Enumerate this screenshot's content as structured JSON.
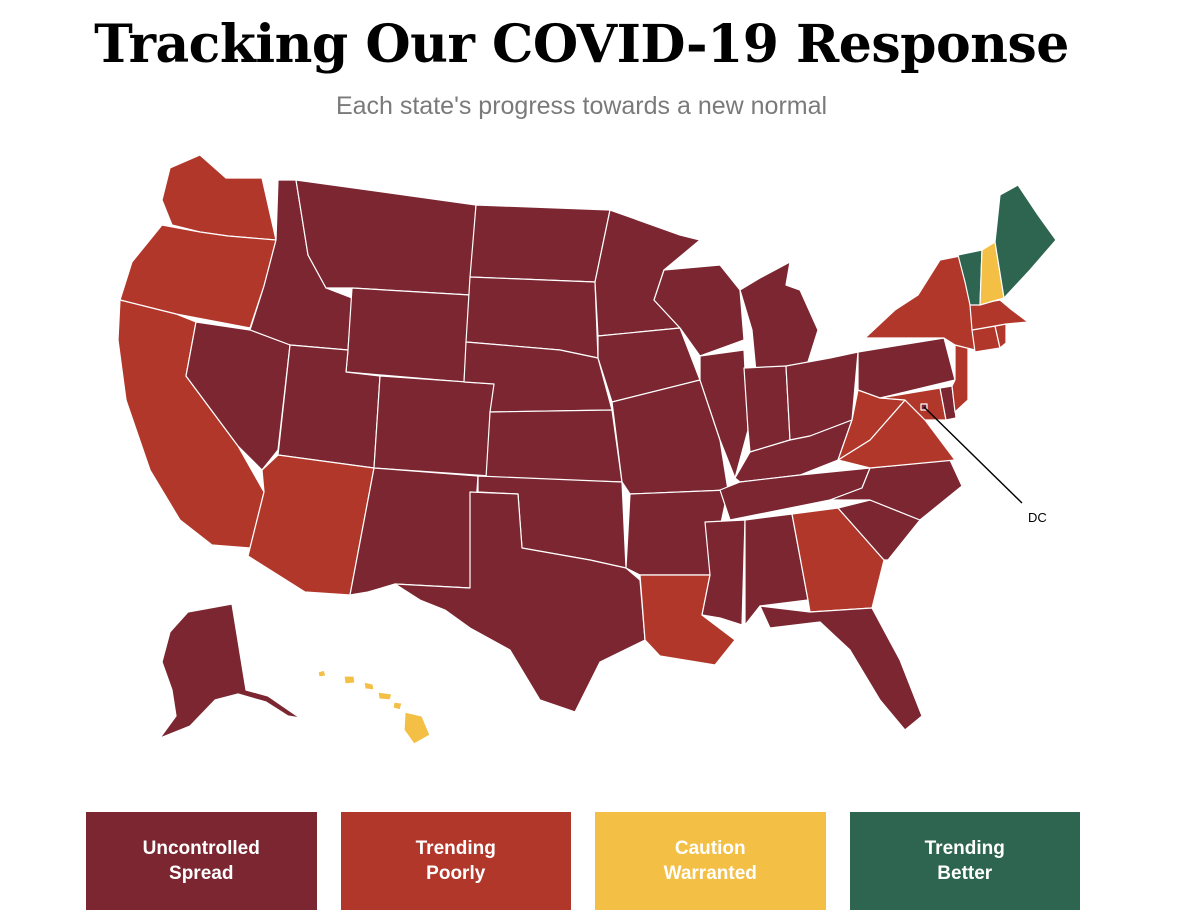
{
  "title": "Tracking Our COVID-19 Response",
  "subtitle": "Each state's progress towards a new normal",
  "colors": {
    "uncontrolled": "#7b2631",
    "poorly": "#b2372b",
    "caution": "#f3bf45",
    "better": "#2e6551"
  },
  "legend": [
    {
      "label": "Uncontrolled\nSpread",
      "color": "#7b2631"
    },
    {
      "label": "Trending\nPoorly",
      "color": "#b2372b"
    },
    {
      "label": "Caution\nWarranted",
      "color": "#f3bf45"
    },
    {
      "label": "Trending\nBetter",
      "color": "#2e6551"
    }
  ],
  "map": {
    "dc_label": "DC",
    "states": {
      "WA": "poorly",
      "OR": "poorly",
      "CA": "poorly",
      "AZ": "poorly",
      "NY": "poorly",
      "MA": "poorly",
      "CT": "poorly",
      "RI": "poorly",
      "NJ": "poorly",
      "WV": "poorly",
      "VA": "poorly",
      "GA": "poorly",
      "LA": "poorly",
      "MD": "poorly",
      "ME": "better",
      "VT": "better",
      "NH": "caution",
      "HI": "caution",
      "ID": "uncontrolled",
      "MT": "uncontrolled",
      "WY": "uncontrolled",
      "NV": "uncontrolled",
      "UT": "uncontrolled",
      "CO": "uncontrolled",
      "NM": "uncontrolled",
      "ND": "uncontrolled",
      "SD": "uncontrolled",
      "NE": "uncontrolled",
      "KS": "uncontrolled",
      "OK": "uncontrolled",
      "TX": "uncontrolled",
      "MN": "uncontrolled",
      "IA": "uncontrolled",
      "MO": "uncontrolled",
      "AR": "uncontrolled",
      "WI": "uncontrolled",
      "IL": "uncontrolled",
      "MI": "uncontrolled",
      "IN": "uncontrolled",
      "OH": "uncontrolled",
      "KY": "uncontrolled",
      "TN": "uncontrolled",
      "MS": "uncontrolled",
      "AL": "uncontrolled",
      "FL": "uncontrolled",
      "SC": "uncontrolled",
      "NC": "uncontrolled",
      "PA": "uncontrolled",
      "DE": "uncontrolled",
      "AK": "uncontrolled",
      "DC": "uncontrolled"
    }
  }
}
